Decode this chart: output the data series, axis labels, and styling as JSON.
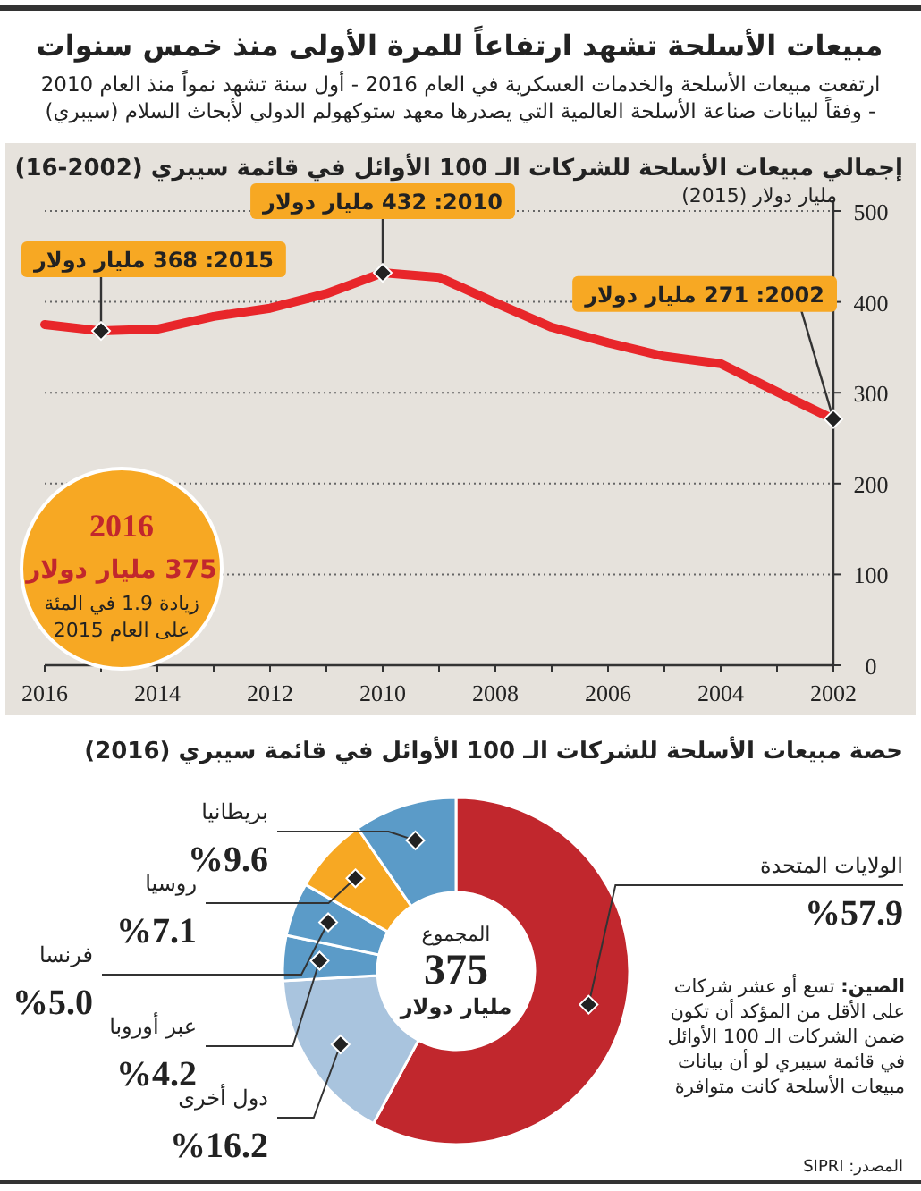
{
  "chart_data": [
    {
      "type": "line",
      "title": "مبيعات الأسلحة تشهد ارتفاعاً للمرة الأولى منذ خمس سنوات",
      "subtitle": "ارتفعت مبيعات الأسلحة والخدمات العسكرية في العام 2016 - أول سنة تشهد نمواً منذ العام 2010 - وفقاً لبيانات صناعة الأسلحة العالمية التي يصدرها معهد ستوكهولم الدولي لأبحاث السلام (سيبري)",
      "ylabel": "مليار دولار (2015)",
      "x": [
        2016,
        2015,
        2014,
        2013,
        2012,
        2011,
        2010,
        2009,
        2008,
        2007,
        2006,
        2005,
        2004,
        2003,
        2002
      ],
      "series": [
        {
          "color": "#e8262a",
          "values": [
            375,
            368,
            370,
            384,
            393,
            409,
            432,
            427,
            399,
            372,
            355,
            340,
            332,
            301,
            271
          ]
        }
      ],
      "xlim": [
        2016,
        2002
      ],
      "xticks": [
        2016,
        {
          "value": 2015,
          "label": null
        },
        2014,
        {
          "value": 2013,
          "label": null
        },
        2012,
        {
          "value": 2011,
          "label": null
        },
        2010,
        {
          "value": 2009,
          "label": null
        },
        2008,
        {
          "value": 2007,
          "label": null
        },
        2006,
        {
          "value": 2005,
          "label": null
        },
        2004,
        {
          "value": 2003,
          "label": null
        },
        2002
      ],
      "ylim": [
        0,
        500
      ],
      "yticks": [
        0,
        100,
        200,
        300,
        400,
        500
      ],
      "grid": "y",
      "annotations": [
        "إجمالي مبيعات الأسلحة للشركات الـ 100 الأوائل في قائمة سيبري (2002-16)",
        {
          "text": "2015: 368 مليار دولار",
          "x": 2015,
          "y": 368
        },
        {
          "text": "2010: 432 مليار دولار",
          "x": 2010,
          "y": 432
        },
        {
          "text": "2002: 271 مليار دولار",
          "x": 2002,
          "y": 271
        },
        "2016",
        "375 مليار دولار",
        "زيادة 1.9 في المئة على العام 2015"
      ]
    },
    {
      "type": "donut",
      "title": "حصة مبيعات الأسلحة للشركات الـ 100 الأوائل في قائمة سيبري (2016)",
      "categories": [
        "الولايات المتحدة",
        "دول أخرى",
        "عبر أوروبا",
        "فرنسا",
        "روسيا",
        "بريطانيا"
      ],
      "values": [
        57.9,
        16.2,
        4.2,
        5.0,
        7.1,
        9.6
      ],
      "colors": [
        "#c1272d",
        "#a9c4de",
        "#5b9bc8",
        "#5b9bc8",
        "#f7a823",
        "#5b9bc8"
      ],
      "value_labels": [
        "%57.9",
        "%16.2",
        "%4.2",
        "%5.0",
        "%7.1",
        "%9.6"
      ],
      "annotations": [
        "المجموع",
        "375",
        "مليار دولار",
        "**الصين:** تسع أو عشر شركات على الأقل من المؤكد أن تكون ضمن الشركات الـ 100 الأوائل في قائمة سيبري لو أن بيانات مبيعات الأسلحة كانت متوافرة",
        "المصدر: SIPRI"
      ]
    }
  ]
}
